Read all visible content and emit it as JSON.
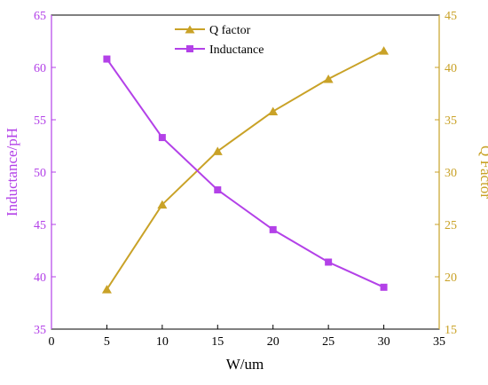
{
  "chart_data": {
    "type": "line",
    "xlabel": "W/um",
    "x": [
      5,
      10,
      15,
      20,
      25,
      30
    ],
    "xlim": [
      0,
      35
    ],
    "xticks": [
      0,
      5,
      10,
      15,
      20,
      25,
      30,
      35
    ],
    "y_left": {
      "label": "Inductance/pH",
      "lim": [
        35,
        65
      ],
      "ticks": [
        35,
        40,
        45,
        50,
        55,
        60,
        65
      ],
      "color": "#b341e8"
    },
    "y_right": {
      "label": "Q Factor",
      "lim": [
        15,
        45
      ],
      "ticks": [
        15,
        20,
        25,
        30,
        35,
        40,
        45
      ],
      "color": "#c9a227"
    },
    "series": [
      {
        "name": "Q factor",
        "axis": "right",
        "marker": "triangle",
        "color": "#c9a227",
        "values": [
          18.8,
          26.9,
          32.0,
          35.8,
          38.9,
          41.6
        ]
      },
      {
        "name": "Inductance",
        "axis": "left",
        "marker": "square",
        "color": "#b341e8",
        "values": [
          60.8,
          53.3,
          48.3,
          44.5,
          41.4,
          39.0
        ]
      }
    ],
    "legend": "top-center",
    "grid": false
  }
}
